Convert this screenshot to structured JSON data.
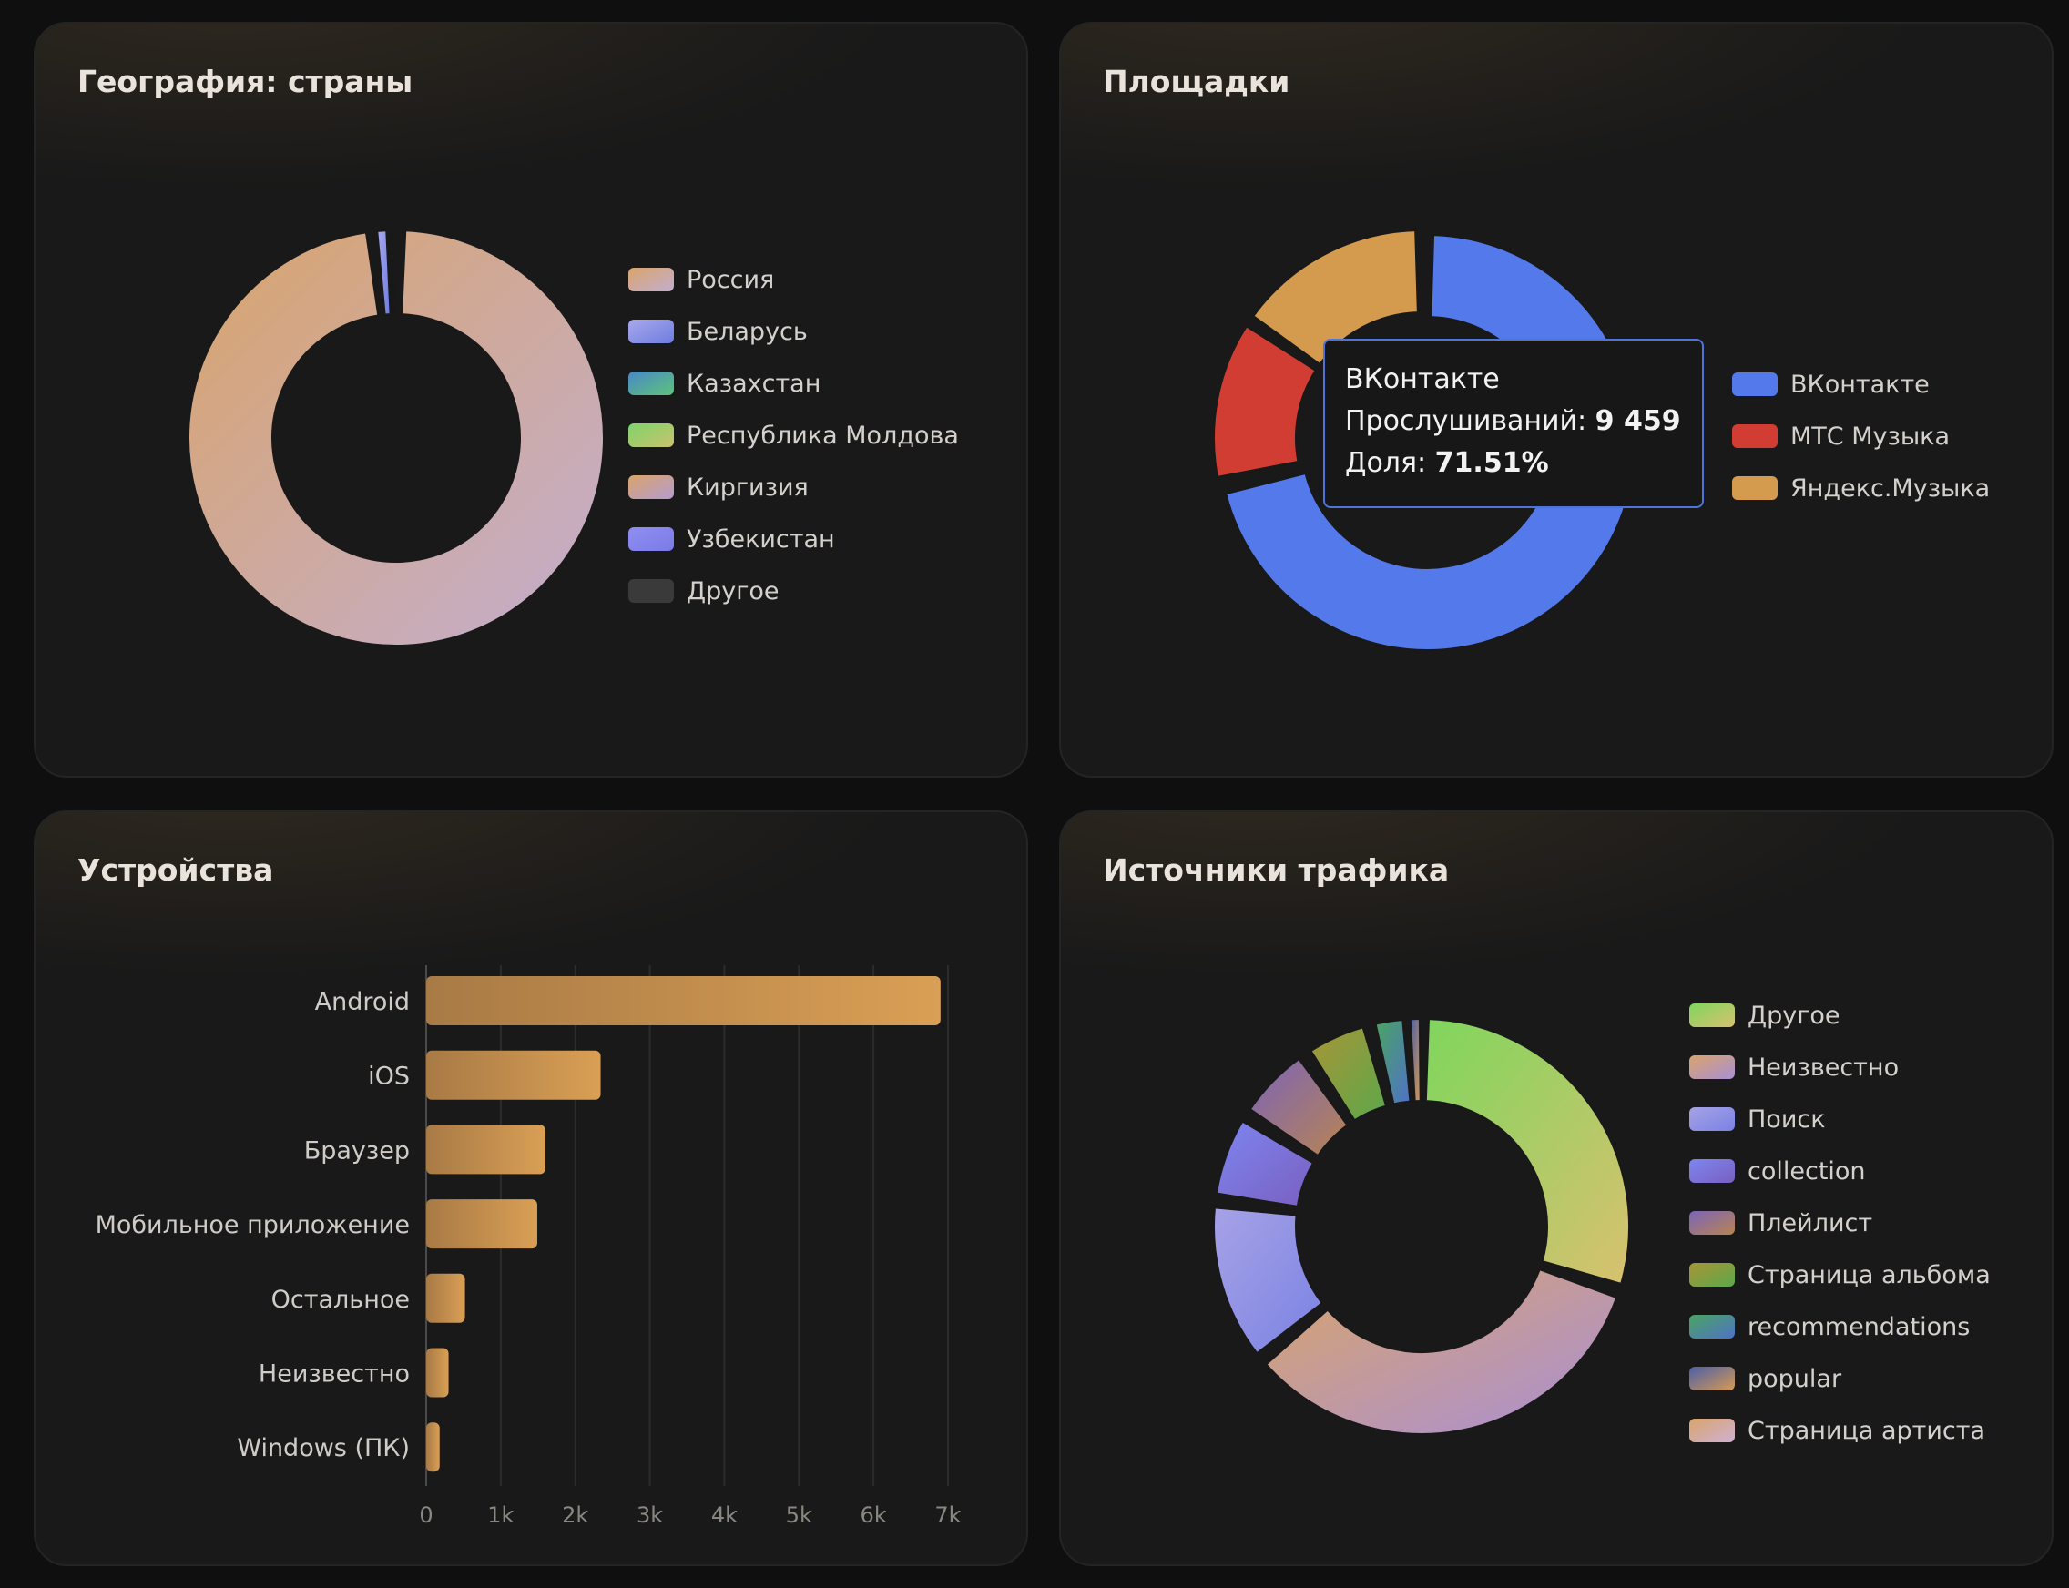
{
  "cards": {
    "geo": {
      "title": "География: страны"
    },
    "platforms": {
      "title": "Площадки"
    },
    "devices": {
      "title": "Устройства"
    },
    "traffic": {
      "title": "Источники трафика"
    }
  },
  "tooltip": {
    "name": "ВКонтакте",
    "plays_label": "Прослушиваний:",
    "plays_value": "9 459",
    "share_label": "Доля:",
    "share_value": "71.51%"
  },
  "chart_data": [
    {
      "id": "geo",
      "type": "pie",
      "title": "География: страны",
      "categories": [
        "Россия",
        "Беларусь",
        "Казахстан",
        "Республика Молдова",
        "Киргизия",
        "Узбекистан",
        "Другое"
      ],
      "values": [
        98.4,
        1.0,
        0.15,
        0.15,
        0.1,
        0.1,
        0.1
      ],
      "colors": [
        [
          "#d9a46b",
          "#c3aed0"
        ],
        [
          "#a9a8ec",
          "#6d7de0"
        ],
        [
          "#4a86c8",
          "#5cc57a"
        ],
        [
          "#7fd36b",
          "#c9c36e"
        ],
        [
          "#d9a46b",
          "#b59ccf"
        ],
        [
          "#8e8ef2",
          "#7b7be6"
        ],
        [
          "#3a3a3a",
          "#3a3a3a"
        ]
      ],
      "legend": "right"
    },
    {
      "id": "platforms",
      "type": "pie",
      "title": "Площадки",
      "categories": [
        "ВКонтакте",
        "МТС Музыка",
        "Яндекс.Музыка"
      ],
      "values": [
        71.51,
        13.0,
        15.49
      ],
      "colors": [
        [
          "#5479ea",
          "#5479ea"
        ],
        [
          "#d23d33",
          "#d23d33"
        ],
        [
          "#d49a4e",
          "#d49a4e"
        ]
      ],
      "legend": "right"
    },
    {
      "id": "devices",
      "type": "bar",
      "title": "Устройства",
      "categories": [
        "Android",
        "iOS",
        "Браузер",
        "Мобильное приложение",
        "Остальное",
        "Неизвестно",
        "Windows (ПК)"
      ],
      "values": [
        6900,
        2340,
        1600,
        1490,
        520,
        300,
        180
      ],
      "x_ticks": [
        "0",
        "1k",
        "2k",
        "3k",
        "4k",
        "5k",
        "6k",
        "7k"
      ],
      "xlim": [
        0,
        7000
      ],
      "grid": true
    },
    {
      "id": "traffic",
      "type": "pie",
      "title": "Источники трафика",
      "categories": [
        "Другое",
        "Неизвестно",
        "Поиск",
        "collection",
        "Плейлист",
        "Страница альбома",
        "recommendations",
        "popular",
        "Страница артиста"
      ],
      "values": [
        30,
        34,
        13,
        7,
        6.5,
        5.5,
        3,
        1,
        0
      ],
      "colors": [
        [
          "#7fd65d",
          "#d8c170"
        ],
        [
          "#d9a46b",
          "#a98fd6"
        ],
        [
          "#a6a2e6",
          "#7a82e3"
        ],
        [
          "#7d86f0",
          "#7a5fc0"
        ],
        [
          "#7b64b8",
          "#b88452"
        ],
        [
          "#a79537",
          "#5ca84a"
        ],
        [
          "#4aa461",
          "#4f72c7"
        ],
        [
          "#4b5fa8",
          "#d79a52"
        ],
        [
          "#d9a46b",
          "#cfb1d4"
        ]
      ],
      "legend": "right"
    }
  ]
}
